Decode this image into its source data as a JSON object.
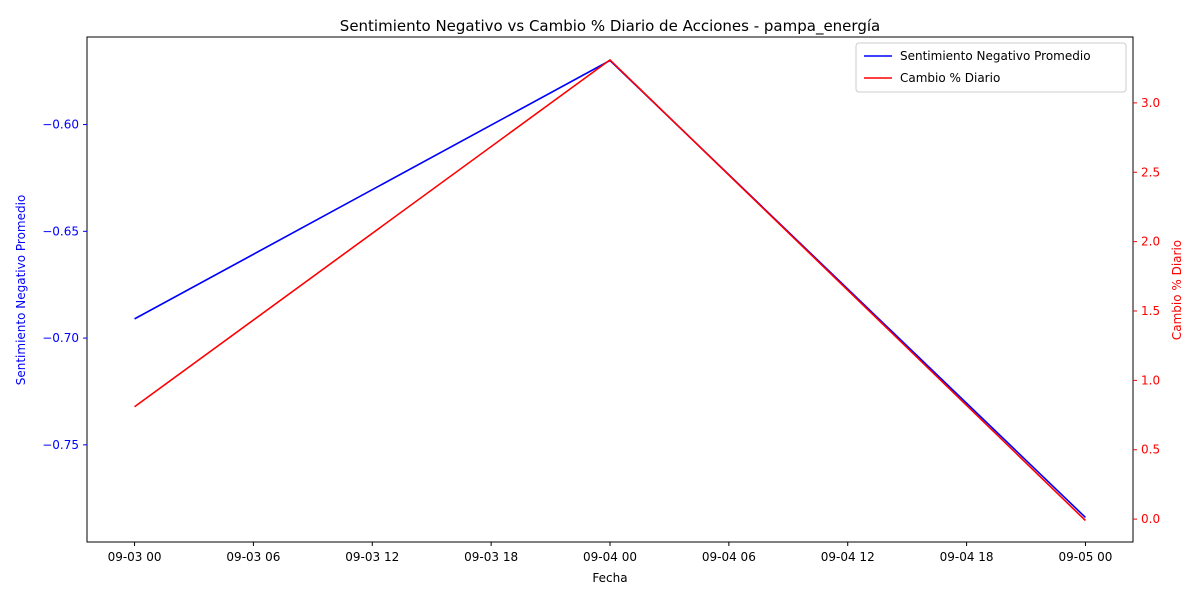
{
  "chart_data": {
    "type": "line",
    "title": "Sentimiento Negativo vs Cambio % Diario de Acciones - pampa_energía",
    "xlabel": "Fecha",
    "ylabel_left": "Sentimiento Negativo Promedio",
    "ylabel_right": "Cambio % Diario",
    "x_hours": [
      0,
      24,
      48
    ],
    "x_ticks": [
      {
        "h": 0,
        "label": "09-03 00"
      },
      {
        "h": 6,
        "label": "09-03 06"
      },
      {
        "h": 12,
        "label": "09-03 12"
      },
      {
        "h": 18,
        "label": "09-03 18"
      },
      {
        "h": 24,
        "label": "09-04 00"
      },
      {
        "h": 30,
        "label": "09-04 06"
      },
      {
        "h": 36,
        "label": "09-04 12"
      },
      {
        "h": 42,
        "label": "09-04 18"
      },
      {
        "h": 48,
        "label": "09-05 00"
      }
    ],
    "xlim": [
      -2.4,
      50.4
    ],
    "left_axis": {
      "color": "#0000ff",
      "ylim": [
        -0.7955,
        -0.559
      ],
      "ticks": [
        {
          "v": -0.6,
          "label": "−0.60"
        },
        {
          "v": -0.65,
          "label": "−0.65"
        },
        {
          "v": -0.7,
          "label": "−0.70"
        },
        {
          "v": -0.75,
          "label": "−0.75"
        }
      ]
    },
    "right_axis": {
      "color": "#ff0000",
      "ylim": [
        -0.165,
        3.475
      ],
      "ticks": [
        {
          "v": 0.0,
          "label": "0.0"
        },
        {
          "v": 0.5,
          "label": "0.5"
        },
        {
          "v": 1.0,
          "label": "1.0"
        },
        {
          "v": 1.5,
          "label": "1.5"
        },
        {
          "v": 2.0,
          "label": "2.0"
        },
        {
          "v": 2.5,
          "label": "2.5"
        },
        {
          "v": 3.0,
          "label": "3.0"
        }
      ]
    },
    "series": [
      {
        "name": "Sentimiento Negativo Promedio",
        "axis": "left",
        "color": "#0000ff",
        "values": [
          -0.691,
          -0.57,
          -0.784
        ]
      },
      {
        "name": "Cambio % Diario",
        "axis": "right",
        "color": "#ff0000",
        "values": [
          0.81,
          3.31,
          -0.01
        ]
      }
    ],
    "legend": "top-right",
    "grid": false
  }
}
